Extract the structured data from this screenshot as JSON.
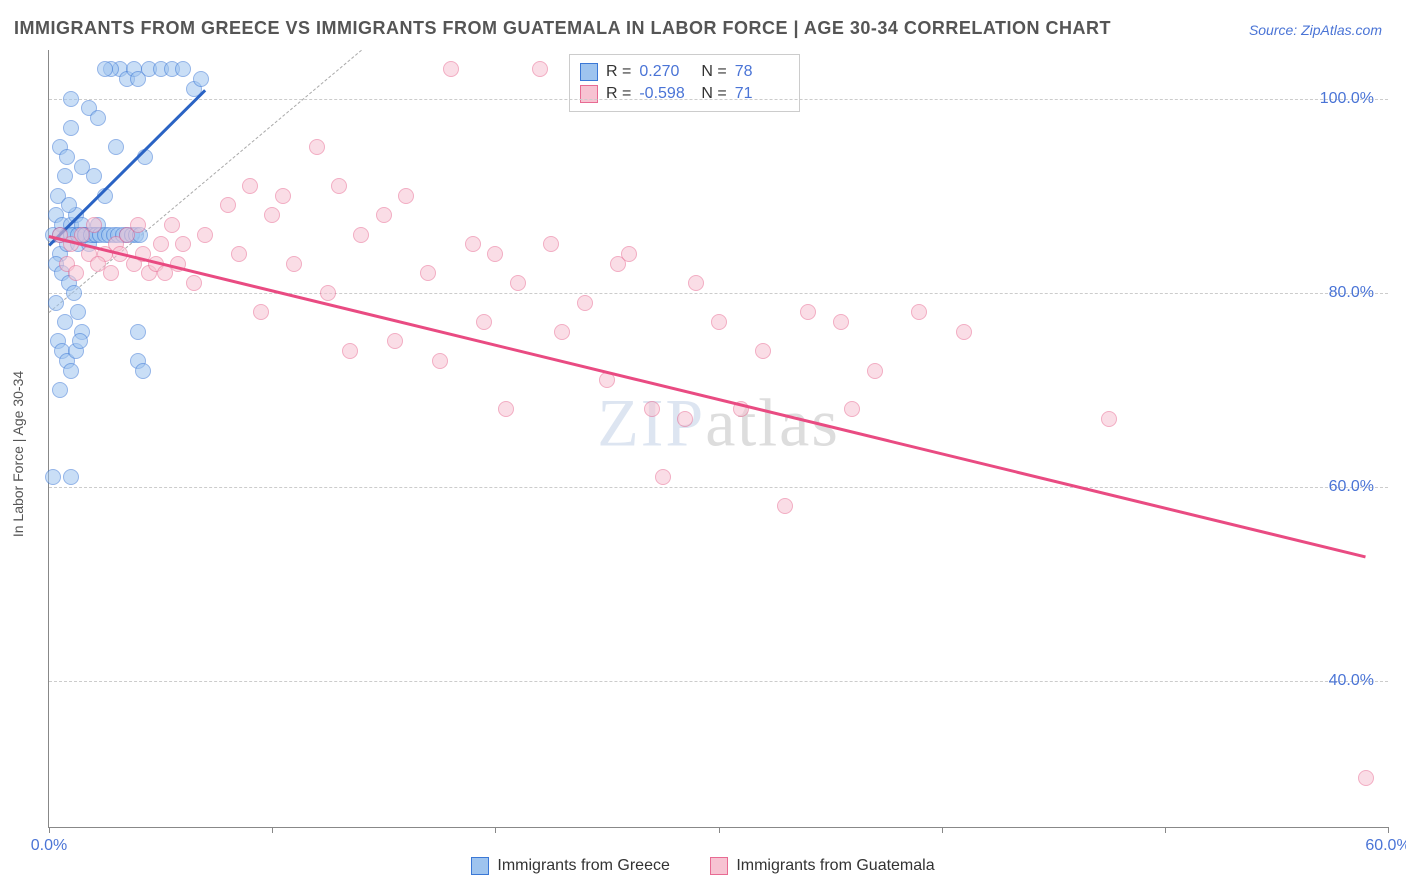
{
  "title": "IMMIGRANTS FROM GREECE VS IMMIGRANTS FROM GUATEMALA IN LABOR FORCE | AGE 30-34 CORRELATION CHART",
  "source_label": "Source: ZipAtlas.com",
  "y_axis_label": "In Labor Force | Age 30-34",
  "watermark_bold": "ZIP",
  "watermark_thin": "atlas",
  "chart": {
    "type": "scatter",
    "background_color": "#ffffff",
    "grid_color": "#cccccc",
    "axis_color": "#888888",
    "tick_color": "#4a74d6",
    "xlim": [
      0,
      60
    ],
    "ylim": [
      25,
      105
    ],
    "xticks": [
      0,
      10,
      20,
      30,
      40,
      50,
      60
    ],
    "xtick_labels": [
      "0.0%",
      "",
      "",
      "",
      "",
      "",
      "60.0%"
    ],
    "yticks": [
      40,
      60,
      80,
      100
    ],
    "ytick_labels": [
      "40.0%",
      "60.0%",
      "80.0%",
      "100.0%"
    ],
    "point_radius": 8,
    "point_opacity": 0.55,
    "unity_line": {
      "x1": 0,
      "y1": 78,
      "x2": 14,
      "y2": 105,
      "color": "#aaaaaa"
    },
    "series": [
      {
        "name": "Immigrants from Greece",
        "color_fill": "#9ec4ef",
        "color_stroke": "#3b78d6",
        "R": "0.270",
        "N": "78",
        "trend": {
          "x1": 0,
          "y1": 85,
          "x2": 7,
          "y2": 101,
          "color": "#2a63c4",
          "width": 2.5
        },
        "points": [
          [
            0.2,
            86
          ],
          [
            0.3,
            88
          ],
          [
            0.5,
            84
          ],
          [
            0.6,
            87
          ],
          [
            0.8,
            85
          ],
          [
            1.0,
            87
          ],
          [
            1.1,
            86
          ],
          [
            1.2,
            88
          ],
          [
            1.3,
            85
          ],
          [
            1.4,
            86
          ],
          [
            0.4,
            90
          ],
          [
            0.7,
            92
          ],
          [
            0.9,
            89
          ],
          [
            1.5,
            87
          ],
          [
            1.6,
            86
          ],
          [
            1.8,
            85
          ],
          [
            2.0,
            86
          ],
          [
            2.2,
            87
          ],
          [
            0.3,
            83
          ],
          [
            0.6,
            82
          ],
          [
            0.9,
            81
          ],
          [
            1.1,
            80
          ],
          [
            1.3,
            78
          ],
          [
            1.5,
            76
          ],
          [
            0.5,
            95
          ],
          [
            0.8,
            94
          ],
          [
            1.0,
            97
          ],
          [
            1.5,
            93
          ],
          [
            2.0,
            92
          ],
          [
            2.5,
            90
          ],
          [
            3.0,
            95
          ],
          [
            3.2,
            103
          ],
          [
            3.5,
            102
          ],
          [
            3.8,
            103
          ],
          [
            4.0,
            102
          ],
          [
            4.3,
            94
          ],
          [
            4.5,
            103
          ],
          [
            5.0,
            103
          ],
          [
            5.5,
            103
          ],
          [
            6.0,
            103
          ],
          [
            6.5,
            101
          ],
          [
            6.8,
            102
          ],
          [
            2.8,
            103
          ],
          [
            2.5,
            103
          ],
          [
            1.0,
            100
          ],
          [
            1.8,
            99
          ],
          [
            2.2,
            98
          ],
          [
            0.4,
            75
          ],
          [
            0.6,
            74
          ],
          [
            0.8,
            73
          ],
          [
            1.0,
            72
          ],
          [
            0.5,
            70
          ],
          [
            0.3,
            79
          ],
          [
            0.7,
            77
          ],
          [
            1.2,
            74
          ],
          [
            1.4,
            75
          ],
          [
            0.2,
            61
          ],
          [
            1.0,
            61
          ],
          [
            4.0,
            73
          ],
          [
            4.2,
            72
          ],
          [
            4.0,
            76
          ],
          [
            0.5,
            86
          ],
          [
            0.8,
            86
          ],
          [
            1.0,
            86
          ],
          [
            1.3,
            86
          ],
          [
            1.6,
            86
          ],
          [
            1.9,
            86
          ],
          [
            2.1,
            86
          ],
          [
            2.3,
            86
          ],
          [
            2.5,
            86
          ],
          [
            2.7,
            86
          ],
          [
            2.9,
            86
          ],
          [
            3.1,
            86
          ],
          [
            3.3,
            86
          ],
          [
            3.5,
            86
          ],
          [
            3.7,
            86
          ],
          [
            3.9,
            86
          ],
          [
            4.1,
            86
          ]
        ]
      },
      {
        "name": "Immigrants from Guatemala",
        "color_fill": "#f7c3d2",
        "color_stroke": "#e86b93",
        "R": "-0.598",
        "N": "71",
        "trend": {
          "x1": 0,
          "y1": 86,
          "x2": 59,
          "y2": 53,
          "color": "#e94b82",
          "width": 2.5
        },
        "points": [
          [
            0.5,
            86
          ],
          [
            1.0,
            85
          ],
          [
            1.5,
            86
          ],
          [
            2.0,
            87
          ],
          [
            2.5,
            84
          ],
          [
            3.0,
            85
          ],
          [
            3.5,
            86
          ],
          [
            4.0,
            87
          ],
          [
            4.5,
            82
          ],
          [
            5.0,
            85
          ],
          [
            5.5,
            87
          ],
          [
            6.0,
            85
          ],
          [
            6.5,
            81
          ],
          [
            7.0,
            86
          ],
          [
            8.0,
            89
          ],
          [
            8.5,
            84
          ],
          [
            9.0,
            91
          ],
          [
            9.5,
            78
          ],
          [
            10.0,
            88
          ],
          [
            10.5,
            90
          ],
          [
            11.0,
            83
          ],
          [
            12.0,
            95
          ],
          [
            12.5,
            80
          ],
          [
            13.0,
            91
          ],
          [
            13.5,
            74
          ],
          [
            14.0,
            86
          ],
          [
            15.0,
            88
          ],
          [
            15.5,
            75
          ],
          [
            16.0,
            90
          ],
          [
            17.0,
            82
          ],
          [
            17.5,
            73
          ],
          [
            18.0,
            103
          ],
          [
            19.0,
            85
          ],
          [
            19.5,
            77
          ],
          [
            20.0,
            84
          ],
          [
            20.5,
            68
          ],
          [
            21.0,
            81
          ],
          [
            22.0,
            103
          ],
          [
            22.5,
            85
          ],
          [
            23.0,
            76
          ],
          [
            24.0,
            79
          ],
          [
            25.0,
            71
          ],
          [
            25.5,
            83
          ],
          [
            26.0,
            84
          ],
          [
            27.0,
            68
          ],
          [
            27.5,
            61
          ],
          [
            28.5,
            67
          ],
          [
            29.0,
            81
          ],
          [
            30.0,
            77
          ],
          [
            31.0,
            68
          ],
          [
            32.0,
            74
          ],
          [
            33.0,
            58
          ],
          [
            34.0,
            78
          ],
          [
            35.5,
            77
          ],
          [
            36.0,
            68
          ],
          [
            37.0,
            72
          ],
          [
            39.0,
            78
          ],
          [
            41.0,
            76
          ],
          [
            47.5,
            67
          ],
          [
            59.0,
            30
          ],
          [
            0.8,
            83
          ],
          [
            1.2,
            82
          ],
          [
            1.8,
            84
          ],
          [
            2.2,
            83
          ],
          [
            2.8,
            82
          ],
          [
            3.2,
            84
          ],
          [
            3.8,
            83
          ],
          [
            4.2,
            84
          ],
          [
            4.8,
            83
          ],
          [
            5.2,
            82
          ],
          [
            5.8,
            83
          ]
        ]
      }
    ]
  },
  "legend": {
    "greece_label": "Immigrants from Greece",
    "guatemala_label": "Immigrants from Guatemala"
  },
  "stats": {
    "r_label": "R =",
    "n_label": "N ="
  }
}
